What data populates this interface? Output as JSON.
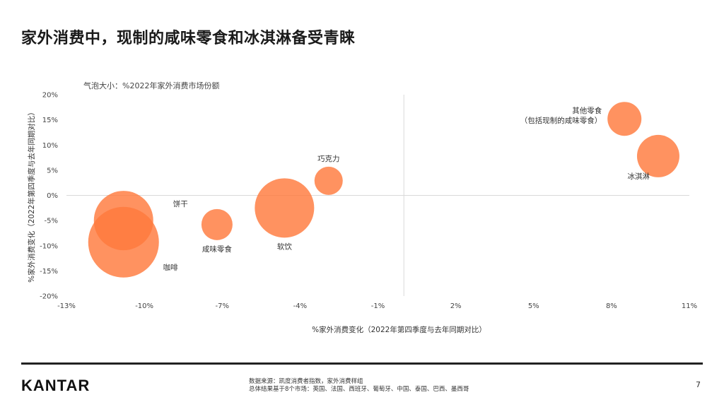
{
  "title": "家外消费中，现制的咸味零食和冰淇淋备受青睐",
  "subtitle": "气泡大小：%2022年家外消费市场份额",
  "chart_data": {
    "type": "scatter",
    "subtype": "bubble",
    "xlabel": "%家外消费变化（2022年第四季度与去年同期对比）",
    "ylabel": "%家外消费变化（2022年第四季度与去年同期对比）",
    "xlim": [
      -13,
      11
    ],
    "ylim": [
      -20,
      20
    ],
    "x_ticks": [
      -13,
      -10,
      -7,
      -4,
      -1,
      2,
      5,
      8,
      11
    ],
    "x_tick_labels": [
      "-13%",
      "-10%",
      "-7%",
      "-4%",
      "-1%",
      "2%",
      "5%",
      "8%",
      "11%"
    ],
    "y_ticks": [
      20,
      15,
      10,
      5,
      0,
      -5,
      -10,
      -15,
      -20
    ],
    "y_tick_labels": [
      "20%",
      "15%",
      "10%",
      "5%",
      "0%",
      "-5%",
      "-10%",
      "-15%",
      "-20%"
    ],
    "reference_lines": {
      "x": 0,
      "y": 0
    },
    "bubble_color": "#ff7a3d",
    "points": [
      {
        "label": "咖啡",
        "x": -10.8,
        "y": -9.3,
        "size": 2.5,
        "label_pos": "bottom-right"
      },
      {
        "label": "饼干",
        "x": -10.8,
        "y": -5.0,
        "size": 2.1,
        "label_pos": "right"
      },
      {
        "label": "咸味零食",
        "x": -7.2,
        "y": -5.8,
        "size": 1.1,
        "label_pos": "bottom"
      },
      {
        "label": "软饮",
        "x": -4.6,
        "y": -2.5,
        "size": 2.1,
        "label_pos": "bottom"
      },
      {
        "label": "巧克力",
        "x": -2.9,
        "y": 2.9,
        "size": 1.0,
        "label_pos": "top"
      },
      {
        "label": "其他零食\n（包括现制的咸味零食）",
        "x": 8.5,
        "y": 15.2,
        "size": 1.2,
        "label_pos": "left"
      },
      {
        "label": "冰淇淋",
        "x": 9.8,
        "y": 7.8,
        "size": 1.5,
        "label_pos": "bottom-left"
      }
    ]
  },
  "footer": {
    "logo": "KANTAR",
    "source_line1": "数据来源：凯度消费者指数，家外消费样组",
    "source_line2": "总体结果基于8个市场：英国、法国、西班牙、葡萄牙、中国、泰国、巴西、墨西哥",
    "page_number": "7"
  }
}
